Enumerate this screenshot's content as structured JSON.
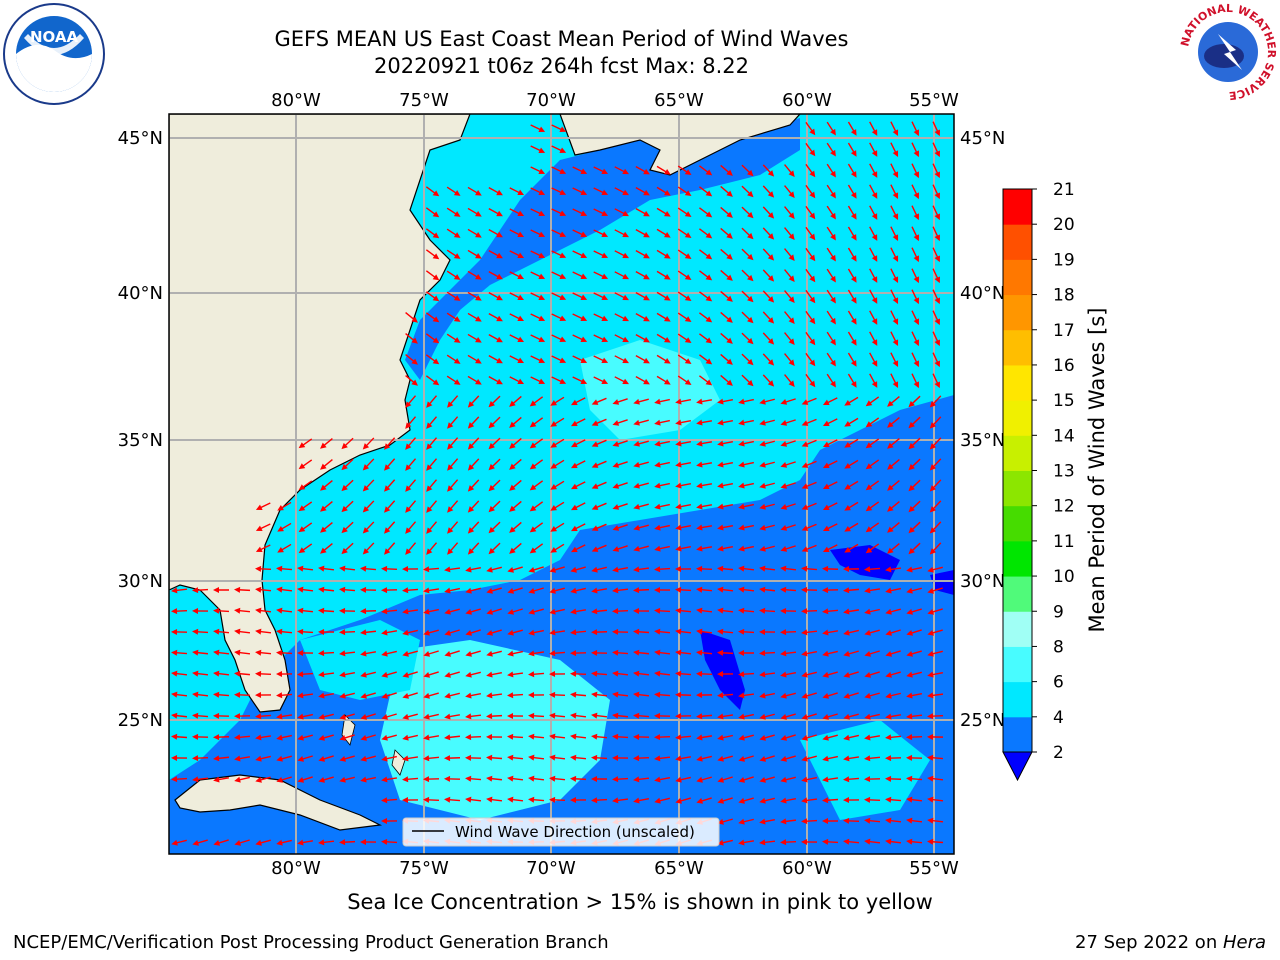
{
  "title": {
    "line1": "GEFS MEAN US East Coast Mean Period of Wind Waves",
    "line2": "20220921 t06z 264h fcst   Max: 8.22"
  },
  "map": {
    "lon_ticks": [
      "80°W",
      "75°W",
      "70°W",
      "65°W",
      "60°W",
      "55°W"
    ],
    "lat_ticks": [
      "45°N",
      "40°N",
      "35°N",
      "30°N",
      "25°N"
    ],
    "legend_label": "Wind Wave Direction (unscaled)",
    "arrow_color": "#ff0000",
    "land_color": "#efeddc"
  },
  "colorbar": {
    "label": "Mean Period of Wind Waves [s]",
    "ticks": [
      "2",
      "4",
      "6",
      "8",
      "9",
      "10",
      "11",
      "12",
      "13",
      "14",
      "15",
      "16",
      "17",
      "18",
      "19",
      "20",
      "21"
    ],
    "colors": [
      "#0a78ff",
      "#00e8ff",
      "#48fcff",
      "#a0fff5",
      "#50fa7a",
      "#00e600",
      "#46dc00",
      "#8ce600",
      "#c8f000",
      "#f0f000",
      "#ffe600",
      "#ffbe00",
      "#ff9600",
      "#ff7800",
      "#ff5000",
      "#ff0000"
    ],
    "extend_color": "#0000ff"
  },
  "footer": {
    "subtitle": "Sea Ice Concentration > 15% is shown in pink to yellow",
    "credit": "NCEP/EMC/Verification Post Processing Product Generation Branch",
    "date": "27 Sep 2022 on ",
    "host": "Hera"
  },
  "logos": {
    "noaa": "NOAA",
    "nws_ring": "NATIONAL WEATHER SERVICE"
  }
}
